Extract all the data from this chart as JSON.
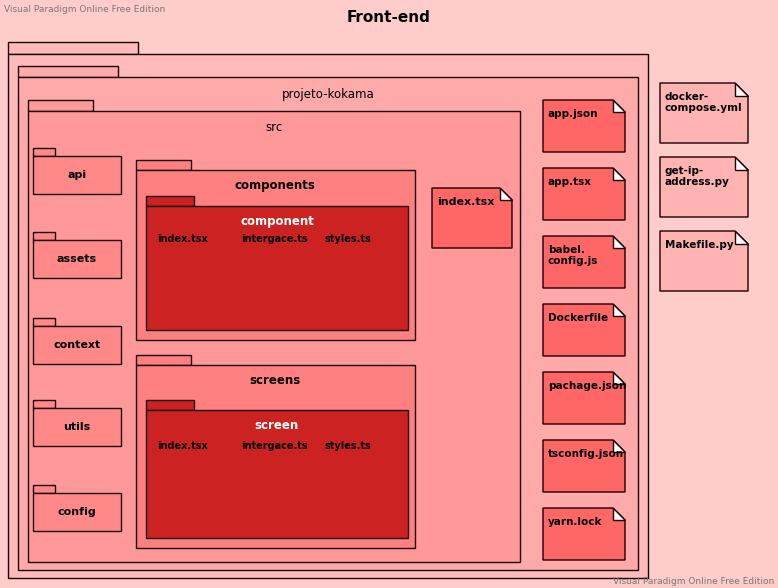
{
  "title": "Front-end",
  "watermark_tl": "Visual Paradigm Online Free Edition",
  "watermark_br": "Visual Paradigm Online Free Edition",
  "bg_color": "#FFCCCC",
  "C_OUTER": "#FFBBBB",
  "C_PJ": "#FFAAAA",
  "C_SRC": "#FF9999",
  "C_COMP_PKG": "#FF8080",
  "C_COMP_INNER": "#CC2222",
  "C_SCR_PKG": "#FF8080",
  "C_SCR_INNER": "#CC2222",
  "C_SIDE_FOLDER": "#FF8888",
  "C_FILE_RED": "#FF6666",
  "C_FILE_DARK": "#CC2222",
  "C_FILE_PINK": "#FF9999",
  "C_FILE_LIGHT": "#FFB3B3",
  "border": "#1a0000",
  "text": "#000000",
  "lw": 1.0
}
